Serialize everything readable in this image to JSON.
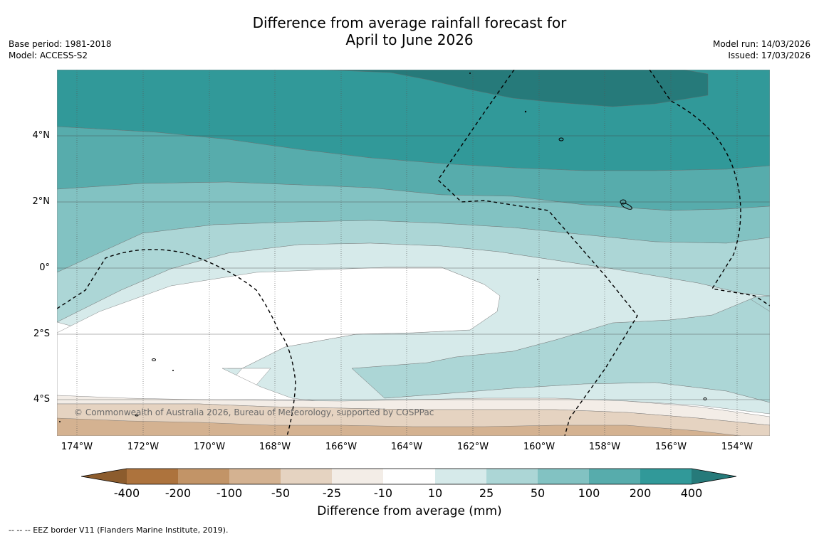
{
  "title": {
    "line1": "Difference from average rainfall forecast for",
    "line2": "April to June 2026"
  },
  "meta_left": {
    "base_period": "Base period: 1981-2018",
    "model": "Model: ACCESS-S2"
  },
  "meta_right": {
    "model_run": "Model run: 14/03/2026",
    "issued": "Issued: 17/03/2026"
  },
  "map": {
    "lat_labels": [
      "4°N",
      "2°N",
      "0°",
      "2°S",
      "4°S"
    ],
    "lon_labels": [
      "174°W",
      "172°W",
      "170°W",
      "168°W",
      "166°W",
      "164°W",
      "162°W",
      "160°W",
      "158°W",
      "156°W",
      "154°W"
    ],
    "copyright": "© Commonwealth of Australia 2026, Bureau of Meteorology, supported by COSPPac",
    "extent": {
      "lon_min": -174.6,
      "lon_max": -153.0,
      "lat_min": -5.2,
      "lat_max": 5.9
    }
  },
  "legend": {
    "title": "Difference from average (mm)",
    "ticks": [
      "-400",
      "-200",
      "-100",
      "-50",
      "-25",
      "-10",
      "10",
      "25",
      "50",
      "100",
      "200",
      "400"
    ],
    "colors": [
      "#8c5c2d",
      "#ad733d",
      "#c29467",
      "#d4b291",
      "#e5d3c1",
      "#f3ede7",
      "#ffffff",
      "#d6eaea",
      "#acd6d6",
      "#82c2c2",
      "#57acac",
      "#319999",
      "#267a7a"
    ]
  },
  "footer": "--  --  -- EEZ border V11 (Flanders Marine Institute, 2019)."
}
